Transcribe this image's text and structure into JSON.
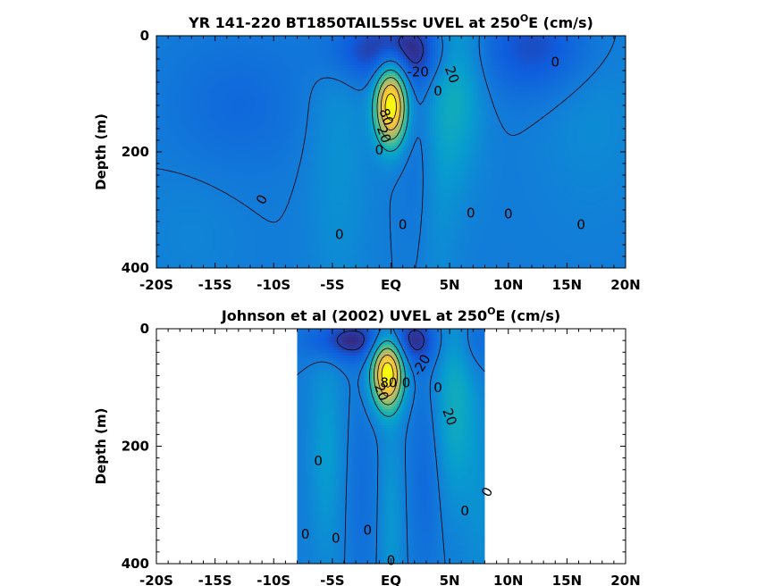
{
  "chart_data": [
    {
      "type": "heatmap",
      "title_main": "YR 141-220 BT1850TAIL55sc UVEL at 250",
      "title_sup": "O",
      "title_tail": "E (cm/s)",
      "xlabel": "",
      "ylabel": "Depth (m)",
      "xlim": [
        -20,
        20
      ],
      "ylim": [
        0,
        400
      ],
      "y_reversed": true,
      "data_extent_x": [
        -20,
        20
      ],
      "x_ticks": [
        -20,
        -15,
        -10,
        -5,
        0,
        5,
        10,
        15,
        20
      ],
      "x_tick_labels": [
        "-20S",
        "-15S",
        "-10S",
        "-5S",
        "EQ",
        "5N",
        "10N",
        "15N",
        "20N"
      ],
      "y_ticks": [
        0,
        200,
        400
      ],
      "y_tick_labels": [
        "0",
        "200",
        "400"
      ],
      "contour_labels": [
        {
          "text": "-20",
          "lat": 2.3,
          "depth": 62,
          "rot": 0
        },
        {
          "text": "20",
          "lat": 5.2,
          "depth": 67,
          "rot": 70
        },
        {
          "text": "0",
          "lat": 14.0,
          "depth": 45,
          "rot": 0
        },
        {
          "text": "0",
          "lat": 4.0,
          "depth": 95,
          "rot": 0
        },
        {
          "text": "80",
          "lat": -0.4,
          "depth": 140,
          "rot": 70
        },
        {
          "text": "20",
          "lat": -0.6,
          "depth": 170,
          "rot": 70
        },
        {
          "text": "0",
          "lat": -1.0,
          "depth": 197,
          "rot": 0
        },
        {
          "text": "0",
          "lat": -11.0,
          "depth": 282,
          "rot": -60
        },
        {
          "text": "0",
          "lat": -4.4,
          "depth": 342,
          "rot": 0
        },
        {
          "text": "0",
          "lat": 1.0,
          "depth": 325,
          "rot": 0
        },
        {
          "text": "0",
          "lat": 6.8,
          "depth": 305,
          "rot": 0
        },
        {
          "text": "0",
          "lat": 10.0,
          "depth": 307,
          "rot": 0
        },
        {
          "text": "0",
          "lat": 16.2,
          "depth": 325,
          "rot": 0
        }
      ],
      "u_max": 90,
      "u_min": -25
    },
    {
      "type": "heatmap",
      "title_main": "Johnson et al (2002) UVEL at 250",
      "title_sup": "O",
      "title_tail": "E (cm/s)",
      "xlabel": "",
      "ylabel": "Depth (m)",
      "xlim": [
        -20,
        20
      ],
      "ylim": [
        0,
        400
      ],
      "y_reversed": true,
      "data_extent_x": [
        -8,
        8
      ],
      "x_ticks": [
        -20,
        -15,
        -10,
        -5,
        0,
        5,
        10,
        15,
        20
      ],
      "x_tick_labels": [
        "-20S",
        "-15S",
        "-10S",
        "-5S",
        "EQ",
        "5N",
        "10N",
        "15N",
        "20N"
      ],
      "y_ticks": [
        0,
        200,
        400
      ],
      "y_tick_labels": [
        "0",
        "200",
        "400"
      ],
      "contour_labels": [
        {
          "text": "-20",
          "lat": 2.6,
          "depth": 62,
          "rot": -60
        },
        {
          "text": "80",
          "lat": -0.2,
          "depth": 92,
          "rot": 0
        },
        {
          "text": "20",
          "lat": -0.8,
          "depth": 108,
          "rot": 70
        },
        {
          "text": "0",
          "lat": 1.3,
          "depth": 92,
          "rot": 0
        },
        {
          "text": "0",
          "lat": 4.0,
          "depth": 100,
          "rot": 0
        },
        {
          "text": "20",
          "lat": 5.0,
          "depth": 150,
          "rot": 70
        },
        {
          "text": "0",
          "lat": -6.2,
          "depth": 225,
          "rot": 0
        },
        {
          "text": "0",
          "lat": 8.2,
          "depth": 278,
          "rot": -60
        },
        {
          "text": "0",
          "lat": 6.3,
          "depth": 310,
          "rot": 0
        },
        {
          "text": "0",
          "lat": -7.3,
          "depth": 350,
          "rot": 0
        },
        {
          "text": "0",
          "lat": -4.7,
          "depth": 357,
          "rot": 0
        },
        {
          "text": "0",
          "lat": -2.0,
          "depth": 343,
          "rot": 0
        },
        {
          "text": "0",
          "lat": 0.0,
          "depth": 395,
          "rot": 0
        }
      ],
      "u_max": 90,
      "u_min": -25
    }
  ]
}
